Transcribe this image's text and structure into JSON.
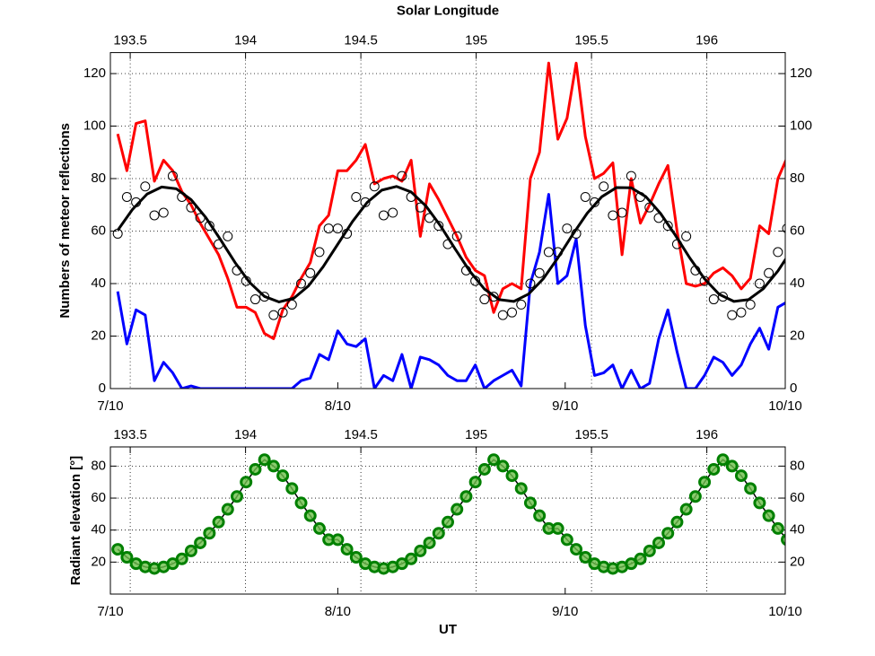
{
  "chart_data": [
    {
      "type": "line",
      "x2label": "Solar Longitude",
      "ylabel": "Numbers of meteor reflections",
      "x": [
        1,
        2.25,
        3.5,
        4.75,
        6,
        7.25,
        8.5,
        9.75,
        11,
        12.25,
        13.5,
        14.75,
        16,
        17.25,
        18.5,
        19.75,
        21,
        22.25,
        23.5,
        24.75,
        26,
        27.25,
        28.5,
        29.75,
        31,
        32.25,
        33.5,
        34.75,
        36,
        37.25,
        38.5,
        39.75,
        41,
        42.25,
        43.5,
        44.75,
        46,
        47.25,
        48.5,
        49.75,
        51,
        52.25,
        53.5,
        54.75,
        56,
        57.25,
        58.5,
        59.75,
        61,
        62.25,
        63.5,
        64.75,
        66,
        67.25,
        68.5,
        69.75,
        71,
        72.25,
        73.5,
        74.75,
        76,
        77.25,
        78.5,
        79.75,
        81,
        82.25,
        83.5,
        84.75,
        86,
        87.25,
        88.5,
        89.75,
        91,
        92.25
      ],
      "xlim": [
        0,
        92
      ],
      "xticks": [
        {
          "value": 0,
          "label": "7/10"
        },
        {
          "value": 31,
          "label": "8/10"
        },
        {
          "value": 62,
          "label": "9/10"
        },
        {
          "value": 92,
          "label": "10/10"
        }
      ],
      "x2lim": [
        193.414,
        196.34
      ],
      "x2ticks": [
        193.5,
        194,
        194.5,
        195,
        195.5,
        196
      ],
      "ylim": [
        0,
        128
      ],
      "yticks": [
        0,
        20,
        40,
        60,
        80,
        100,
        120
      ],
      "grid": true,
      "mirror_y": true,
      "series": [
        {
          "color": "#ff0000",
          "mode": "lines",
          "values": [
            97,
            83,
            101,
            102,
            79,
            87,
            83,
            75,
            70,
            63,
            57,
            51,
            42,
            31,
            31,
            29,
            21,
            19,
            30,
            35,
            42,
            48,
            62,
            66,
            83,
            83,
            87,
            93,
            78,
            80,
            81,
            79,
            87,
            58,
            78,
            72,
            65,
            58,
            50,
            45,
            43,
            29,
            38,
            40,
            38,
            80,
            90,
            124,
            95,
            103,
            124,
            96,
            80,
            82,
            86,
            51,
            80,
            63,
            70,
            78,
            85,
            60,
            40,
            39,
            40,
            44,
            46,
            43,
            38,
            42,
            62,
            59,
            80,
            88
          ]
        },
        {
          "color": "#0000ff",
          "mode": "lines",
          "values": [
            37,
            17,
            30,
            28,
            3,
            10,
            6,
            0,
            1,
            0,
            0,
            0,
            0,
            0,
            0,
            0,
            0,
            0,
            0,
            0,
            3,
            4,
            13,
            11,
            22,
            17,
            16,
            19,
            0,
            5,
            3,
            13,
            0,
            12,
            11,
            9,
            5,
            3,
            3,
            9,
            0,
            3,
            5,
            7,
            1,
            40,
            52,
            74,
            40,
            43,
            57,
            24,
            5,
            6,
            9,
            0,
            7,
            0,
            2,
            19,
            30,
            14,
            0,
            0,
            5,
            12,
            10,
            5,
            9,
            17,
            23,
            15,
            31,
            33
          ]
        },
        {
          "color": "#000000",
          "mode": "lines",
          "x": [
            1,
            3,
            5,
            7,
            9,
            11,
            13,
            15,
            17,
            19,
            21,
            23,
            25,
            27,
            29,
            31,
            33,
            35,
            37,
            39,
            41,
            43,
            45,
            47,
            49,
            51,
            53,
            55,
            57,
            59,
            61,
            63,
            65,
            67,
            69,
            71,
            73,
            75,
            77,
            79,
            81,
            83,
            85,
            87,
            89,
            91,
            93
          ],
          "values": [
            60.3,
            68.2,
            74.1,
            76.8,
            76.1,
            72.0,
            65.2,
            56.8,
            48.0,
            40.4,
            35.1,
            33.0,
            34.4,
            39.1,
            46.4,
            55.0,
            63.6,
            70.9,
            75.6,
            77.0,
            74.9,
            69.6,
            62.0,
            53.2,
            44.7,
            37.9,
            33.9,
            33.2,
            36.0,
            41.8,
            49.8,
            58.6,
            66.8,
            73.1,
            76.6,
            76.5,
            73.1,
            66.7,
            58.5,
            49.7,
            41.8,
            35.9,
            33.2,
            33.9,
            38.0,
            44.8,
            53.3
          ]
        },
        {
          "color": "#000000",
          "mode": "markers",
          "values": [
            59,
            73,
            71,
            77,
            66,
            67,
            81,
            73,
            69,
            65,
            62,
            55,
            58,
            45,
            41,
            34,
            35,
            28,
            29,
            32,
            40,
            44,
            52,
            61,
            61,
            59,
            73,
            71,
            77,
            66,
            67,
            81,
            73,
            69,
            65,
            62,
            55,
            58,
            45,
            41,
            34,
            35,
            28,
            29,
            32,
            40,
            44,
            52,
            52,
            61,
            59,
            73,
            71,
            77,
            66,
            67,
            81,
            73,
            69,
            65,
            62,
            55,
            58,
            45,
            41,
            34,
            35,
            28,
            29,
            32,
            40,
            44,
            52,
            61
          ]
        }
      ]
    },
    {
      "type": "line",
      "xlabel": "UT",
      "ylabel": "Radiant elevation [°]",
      "x": [
        1,
        2.25,
        3.5,
        4.75,
        6,
        7.25,
        8.5,
        9.75,
        11,
        12.25,
        13.5,
        14.75,
        16,
        17.25,
        18.5,
        19.75,
        21,
        22.25,
        23.5,
        24.75,
        26,
        27.25,
        28.5,
        29.75,
        31,
        32.25,
        33.5,
        34.75,
        36,
        37.25,
        38.5,
        39.75,
        41,
        42.25,
        43.5,
        44.75,
        46,
        47.25,
        48.5,
        49.75,
        51,
        52.25,
        53.5,
        54.75,
        56,
        57.25,
        58.5,
        59.75,
        61,
        62.25,
        63.5,
        64.75,
        66,
        67.25,
        68.5,
        69.75,
        71,
        72.25,
        73.5,
        74.75,
        76,
        77.25,
        78.5,
        79.75,
        81,
        82.25,
        83.5,
        84.75,
        86,
        87.25,
        88.5,
        89.75,
        91,
        92.25
      ],
      "xlim": [
        0,
        92
      ],
      "xticks": [
        {
          "value": 0,
          "label": "7/10"
        },
        {
          "value": 31,
          "label": "8/10"
        },
        {
          "value": 62,
          "label": "9/10"
        },
        {
          "value": 92,
          "label": "10/10"
        }
      ],
      "x2lim": [
        193.414,
        196.34
      ],
      "x2ticks": [
        193.5,
        194,
        194.5,
        195,
        195.5,
        196
      ],
      "ylim": [
        0,
        92
      ],
      "yticks": [
        20,
        40,
        60,
        80
      ],
      "grid": true,
      "mirror_y": true,
      "series": [
        {
          "color": "#008000",
          "line_color": "#000000",
          "mode": "lines+markers",
          "values": [
            28,
            23,
            19,
            17,
            16,
            17,
            19,
            22,
            27,
            32,
            38,
            45,
            53,
            61,
            70,
            78,
            84,
            80,
            74,
            66,
            57,
            49,
            41,
            34,
            34,
            28,
            23,
            19,
            17,
            16,
            17,
            19,
            22,
            27,
            32,
            38,
            45,
            53,
            61,
            70,
            78,
            84,
            80,
            74,
            66,
            57,
            49,
            41,
            41,
            34,
            28,
            23,
            19,
            17,
            16,
            17,
            19,
            22,
            27,
            32,
            38,
            45,
            53,
            61,
            70,
            78,
            84,
            80,
            74,
            66,
            57,
            49,
            41,
            34
          ]
        }
      ]
    }
  ]
}
